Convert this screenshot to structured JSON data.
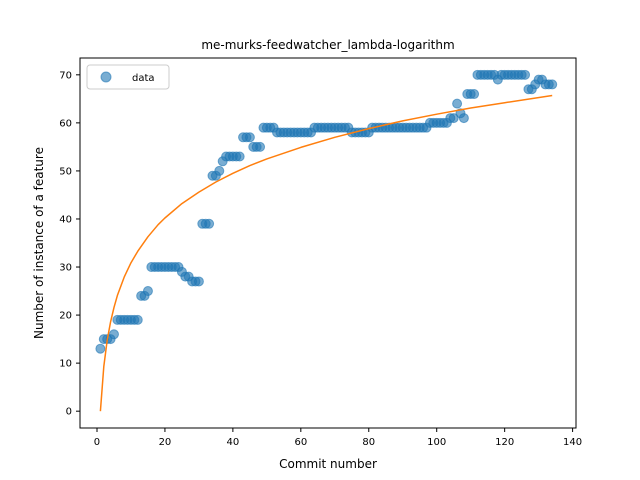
{
  "chart_data": {
    "type": "scatter",
    "title": "me-murks-feedwatcher_lambda-logarithm",
    "xlabel": "Commit number",
    "ylabel": "Number of instance of a feature",
    "xlim": [
      -5,
      141
    ],
    "ylim": [
      -3.5,
      73.5
    ],
    "xticks": [
      0,
      20,
      40,
      60,
      80,
      100,
      120,
      140
    ],
    "yticks": [
      0,
      10,
      20,
      30,
      40,
      50,
      60,
      70
    ],
    "legend": {
      "position": "top-left",
      "entries": [
        "data"
      ]
    },
    "grid": false,
    "series": [
      {
        "name": "data",
        "kind": "scatter",
        "color": "#1f77b4",
        "x": [
          1,
          2,
          3,
          4,
          5,
          6,
          7,
          8,
          9,
          10,
          11,
          12,
          13,
          14,
          15,
          16,
          17,
          18,
          19,
          20,
          21,
          22,
          23,
          24,
          25,
          26,
          27,
          28,
          29,
          30,
          31,
          32,
          33,
          34,
          35,
          36,
          37,
          38,
          39,
          40,
          41,
          42,
          43,
          44,
          45,
          46,
          47,
          48,
          49,
          50,
          51,
          52,
          53,
          54,
          55,
          56,
          57,
          58,
          59,
          60,
          61,
          62,
          63,
          64,
          65,
          66,
          67,
          68,
          69,
          70,
          71,
          72,
          73,
          74,
          75,
          76,
          77,
          78,
          79,
          80,
          81,
          82,
          83,
          84,
          85,
          86,
          87,
          88,
          89,
          90,
          91,
          92,
          93,
          94,
          95,
          96,
          97,
          98,
          99,
          100,
          101,
          102,
          103,
          104,
          105,
          106,
          107,
          108,
          109,
          110,
          111,
          112,
          113,
          114,
          115,
          116,
          117,
          118,
          119,
          120,
          121,
          122,
          123,
          124,
          125,
          126,
          127,
          128,
          129,
          130,
          131,
          132,
          133,
          134
        ],
        "y": [
          13,
          15,
          15,
          15,
          16,
          19,
          19,
          19,
          19,
          19,
          19,
          19,
          24,
          24,
          25,
          30,
          30,
          30,
          30,
          30,
          30,
          30,
          30,
          30,
          29,
          28,
          28,
          27,
          27,
          27,
          39,
          39,
          39,
          49,
          49,
          50,
          52,
          53,
          53,
          53,
          53,
          53,
          57,
          57,
          57,
          55,
          55,
          55,
          59,
          59,
          59,
          59,
          58,
          58,
          58,
          58,
          58,
          58,
          58,
          58,
          58,
          58,
          58,
          59,
          59,
          59,
          59,
          59,
          59,
          59,
          59,
          59,
          59,
          59,
          58,
          58,
          58,
          58,
          58,
          58,
          59,
          59,
          59,
          59,
          59,
          59,
          59,
          59,
          59,
          59,
          59,
          59,
          59,
          59,
          59,
          59,
          59,
          60,
          60,
          60,
          60,
          60,
          60,
          61,
          61,
          64,
          62,
          61,
          66,
          66,
          66,
          70,
          70,
          70,
          70,
          70,
          70,
          69,
          70,
          70,
          70,
          70,
          70,
          70,
          70,
          70,
          67,
          67,
          68,
          69,
          69,
          68,
          68,
          68
        ]
      },
      {
        "name": "",
        "kind": "line",
        "color": "#ff7f0e",
        "fit": "logarithm",
        "x": [
          1,
          2,
          3,
          4,
          5,
          6,
          8,
          10,
          12,
          15,
          18,
          20,
          25,
          30,
          35,
          40,
          45,
          50,
          60,
          70,
          80,
          90,
          100,
          110,
          120,
          134
        ],
        "y": [
          0,
          9.3,
          14.8,
          18.6,
          21.6,
          24.1,
          27.9,
          30.9,
          33.3,
          36.3,
          38.8,
          40.2,
          43.2,
          45.6,
          47.7,
          49.5,
          51.1,
          52.5,
          54.9,
          57.0,
          58.8,
          60.4,
          61.8,
          63.1,
          64.2,
          65.7
        ]
      }
    ]
  }
}
